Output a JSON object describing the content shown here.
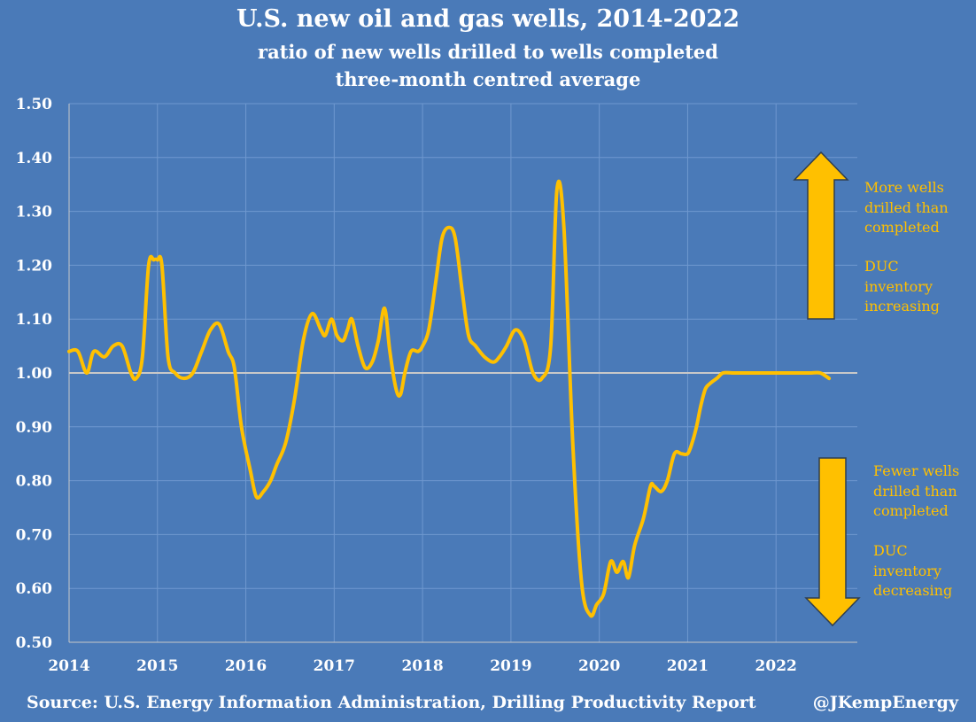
{
  "chart_data": {
    "type": "line",
    "title": "U.S. new oil and gas wells, 2014-2022",
    "subtitle_lines": [
      "ratio of new wells drilled to wells completed",
      "three-month centred average"
    ],
    "xlabel": "",
    "ylabel": "",
    "x_ticks": [
      "2014",
      "2015",
      "2016",
      "2017",
      "2018",
      "2019",
      "2020",
      "2021",
      "2022"
    ],
    "y_ticks": [
      "0.50",
      "0.60",
      "0.70",
      "0.80",
      "0.90",
      "1.00",
      "1.10",
      "1.20",
      "1.30",
      "1.40",
      "1.50"
    ],
    "ylim": [
      0.5,
      1.5
    ],
    "xlim": [
      2014,
      2022.92
    ],
    "reference_line": 1.0,
    "grid": "vertical lines at each year and horizontal lines at each 0.10",
    "line_color": "#ffc000",
    "series": [
      {
        "x": [
          2014.0,
          2014.1,
          2014.2,
          2014.28,
          2014.4,
          2014.5,
          2014.6,
          2014.7,
          2014.76,
          2014.83,
          2014.9,
          2014.96,
          2015.0,
          2015.05,
          2015.12,
          2015.2,
          2015.3,
          2015.4,
          2015.5,
          2015.6,
          2015.7,
          2015.8,
          2015.87,
          2015.95,
          2016.05,
          2016.12,
          2016.2,
          2016.28,
          2016.35,
          2016.45,
          2016.55,
          2016.65,
          2016.75,
          2016.85,
          2016.9,
          2016.97,
          2017.03,
          2017.1,
          2017.15,
          2017.2,
          2017.27,
          2017.35,
          2017.43,
          2017.5,
          2017.57,
          2017.63,
          2017.7,
          2017.75,
          2017.8,
          2017.87,
          2017.95,
          2018.0,
          2018.07,
          2018.15,
          2018.22,
          2018.3,
          2018.37,
          2018.45,
          2018.52,
          2018.6,
          2018.7,
          2018.8,
          2018.87,
          2018.95,
          2019.05,
          2019.15,
          2019.25,
          2019.35,
          2019.45,
          2019.52,
          2019.6,
          2019.7,
          2019.8,
          2019.9,
          2019.97,
          2020.05,
          2020.13,
          2020.2,
          2020.27,
          2020.33,
          2020.4,
          2020.5,
          2020.58,
          2020.62,
          2020.7,
          2020.77,
          2020.85,
          2020.93,
          2021.0,
          2021.05,
          2021.1,
          2021.15,
          2021.2,
          2021.25,
          2021.33,
          2021.4,
          2021.5,
          2021.57,
          2021.63,
          2021.72,
          2021.8,
          2021.88,
          2021.95,
          2022.0,
          2022.1,
          2022.2,
          2022.3,
          2022.4,
          2022.5,
          2022.6
        ],
        "y": [
          1.04,
          1.04,
          1.0,
          1.04,
          1.03,
          1.05,
          1.05,
          1.0,
          0.99,
          1.03,
          1.2,
          1.21,
          1.21,
          1.2,
          1.03,
          1.0,
          0.99,
          1.0,
          1.04,
          1.08,
          1.09,
          1.04,
          1.01,
          0.9,
          0.82,
          0.77,
          0.78,
          0.8,
          0.83,
          0.87,
          0.95,
          1.06,
          1.11,
          1.08,
          1.07,
          1.1,
          1.07,
          1.06,
          1.08,
          1.1,
          1.05,
          1.01,
          1.02,
          1.06,
          1.12,
          1.04,
          0.97,
          0.96,
          1.0,
          1.04,
          1.04,
          1.05,
          1.08,
          1.17,
          1.25,
          1.27,
          1.25,
          1.15,
          1.07,
          1.05,
          1.03,
          1.02,
          1.03,
          1.05,
          1.08,
          1.06,
          1.0,
          0.99,
          1.05,
          1.34,
          1.27,
          0.87,
          0.61,
          0.55,
          0.57,
          0.59,
          0.65,
          0.63,
          0.65,
          0.62,
          0.68,
          0.73,
          0.79,
          0.79,
          0.78,
          0.8,
          0.85,
          0.85,
          0.85,
          0.87,
          0.9,
          0.94,
          0.97,
          0.98,
          0.99,
          1.0,
          1.0,
          1.0,
          1.0,
          1.0,
          1.0,
          1.0,
          1.0,
          1.0,
          1.0,
          1.0,
          1.0,
          1.0,
          1.0,
          0.99
        ]
      }
    ],
    "annotations": {
      "up_label": [
        "More wells",
        "drilled than",
        "completed"
      ],
      "up_label_2": [
        "DUC",
        "inventory",
        "increasing"
      ],
      "down_label": [
        "Fewer wells",
        "drilled than",
        "completed"
      ],
      "down_label_2": [
        "DUC",
        "inventory",
        "decreasing"
      ]
    }
  },
  "footer": {
    "source": "Source: U.S. Energy Information Administration, Drilling Productivity Report",
    "handle": "@JKempEnergy"
  },
  "colors": {
    "background": "#4a7ab8",
    "line": "#ffc000",
    "text": "#ffffff",
    "grid": "#6f98cf"
  }
}
